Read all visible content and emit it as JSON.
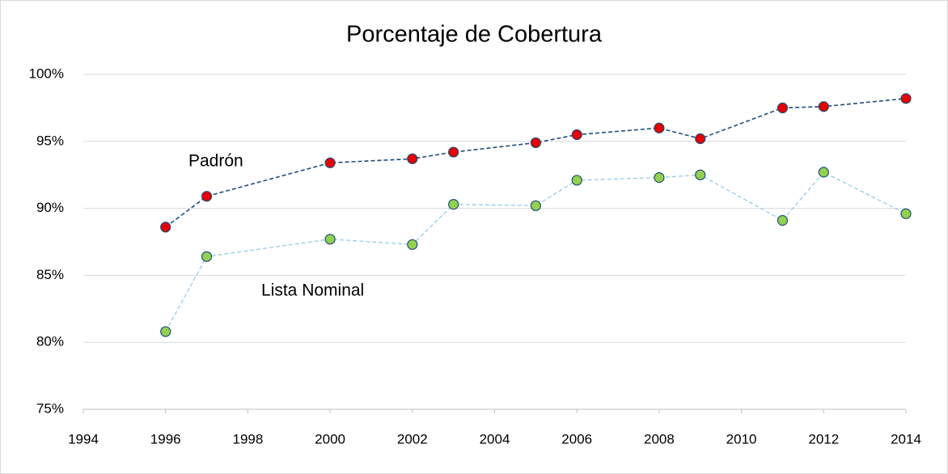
{
  "chart_data": {
    "type": "line",
    "title": "Porcentaje de Cobertura",
    "x": [
      1996,
      1997,
      2000,
      2002,
      2003,
      2005,
      2006,
      2008,
      2009,
      2011,
      2012,
      2014
    ],
    "series": [
      {
        "name": "Padrón",
        "color": "#1f4e79",
        "marker_color": "#e60000",
        "values": [
          88.6,
          90.9,
          93.4,
          93.7,
          94.2,
          94.9,
          95.5,
          96.0,
          95.2,
          97.5,
          97.6,
          98.2
        ]
      },
      {
        "name": "Lista Nominal",
        "color": "#8ec8e4",
        "marker_color": "#92d050",
        "values": [
          80.8,
          86.4,
          87.7,
          87.3,
          90.3,
          90.2,
          92.1,
          92.3,
          92.5,
          89.1,
          92.7,
          89.6
        ]
      }
    ],
    "xlim": [
      1994,
      2014
    ],
    "xticks": [
      1994,
      1996,
      1998,
      2000,
      2002,
      2004,
      2006,
      2008,
      2010,
      2012,
      2014
    ],
    "ylim": [
      75,
      100
    ],
    "yticks": [
      {
        "value": 75,
        "label": "75%"
      },
      {
        "value": 80,
        "label": "80%"
      },
      {
        "value": 85,
        "label": "85%"
      },
      {
        "value": 90,
        "label": "90%"
      },
      {
        "value": 95,
        "label": "95%"
      },
      {
        "value": 100,
        "label": "100%"
      }
    ],
    "grid": true
  }
}
